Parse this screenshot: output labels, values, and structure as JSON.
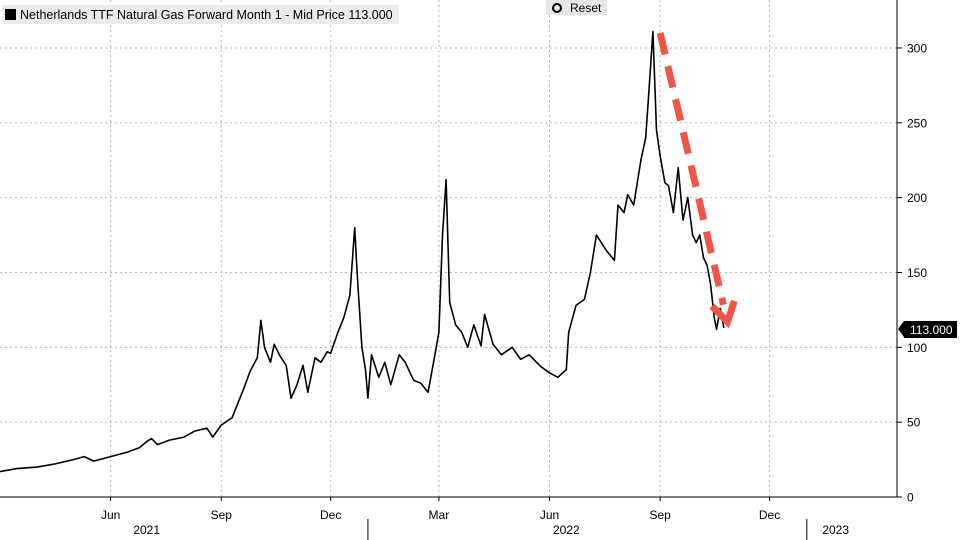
{
  "legend": {
    "text": "Netherlands TTF Natural Gas Forward Month 1 - Mid Price 113.000"
  },
  "toolbar": {
    "reset_label": "Reset",
    "reset_icon": "reset-icon"
  },
  "price_tag": {
    "value": "113.000"
  },
  "colors": {
    "line": "#000000",
    "arrow": "#f05545",
    "grid": "#b5b5b5"
  },
  "chart_data": {
    "type": "line",
    "title": "Netherlands TTF Natural Gas Forward Month 1 - Mid Price 113.000",
    "ylim": [
      0,
      320
    ],
    "yticks": [
      0,
      50,
      100,
      150,
      200,
      250,
      300
    ],
    "month_labels": [
      {
        "label": "Jun",
        "x": "2021-06-01"
      },
      {
        "label": "Sep",
        "x": "2021-09-01"
      },
      {
        "label": "Dec",
        "x": "2021-12-01"
      },
      {
        "label": "Mar",
        "x": "2022-03-01"
      },
      {
        "label": "Jun",
        "x": "2022-06-01"
      },
      {
        "label": "Sep",
        "x": "2022-09-01"
      },
      {
        "label": "Dec",
        "x": "2022-12-01"
      }
    ],
    "year_labels": [
      {
        "label": "2021",
        "x": "2021-07-01"
      },
      {
        "label": "2022",
        "x": "2022-06-15"
      },
      {
        "label": "2023",
        "x": "2023-01-25"
      }
    ],
    "year_dividers": [
      "2022-01-01",
      "2023-01-01"
    ],
    "grid": true,
    "last_value": 113.0,
    "series": [
      {
        "points": [
          [
            "2021-03-01",
            17
          ],
          [
            "2021-03-15",
            19
          ],
          [
            "2021-04-01",
            20
          ],
          [
            "2021-04-15",
            22
          ],
          [
            "2021-05-01",
            25
          ],
          [
            "2021-05-10",
            27
          ],
          [
            "2021-05-18",
            24
          ],
          [
            "2021-06-01",
            27
          ],
          [
            "2021-06-15",
            30
          ],
          [
            "2021-06-25",
            33
          ],
          [
            "2021-07-01",
            37
          ],
          [
            "2021-07-05",
            39
          ],
          [
            "2021-07-10",
            35
          ],
          [
            "2021-07-20",
            38
          ],
          [
            "2021-08-01",
            40
          ],
          [
            "2021-08-10",
            44
          ],
          [
            "2021-08-20",
            46
          ],
          [
            "2021-08-25",
            40
          ],
          [
            "2021-09-01",
            48
          ],
          [
            "2021-09-10",
            53
          ],
          [
            "2021-09-15",
            63
          ],
          [
            "2021-09-20",
            73
          ],
          [
            "2021-09-25",
            84
          ],
          [
            "2021-10-01",
            93
          ],
          [
            "2021-10-04",
            118
          ],
          [
            "2021-10-07",
            100
          ],
          [
            "2021-10-12",
            90
          ],
          [
            "2021-10-15",
            102
          ],
          [
            "2021-10-20",
            94
          ],
          [
            "2021-10-25",
            88
          ],
          [
            "2021-10-29",
            66
          ],
          [
            "2021-11-03",
            75
          ],
          [
            "2021-11-08",
            88
          ],
          [
            "2021-11-12",
            70
          ],
          [
            "2021-11-18",
            93
          ],
          [
            "2021-11-23",
            90
          ],
          [
            "2021-11-28",
            97
          ],
          [
            "2021-12-01",
            96
          ],
          [
            "2021-12-07",
            110
          ],
          [
            "2021-12-12",
            120
          ],
          [
            "2021-12-17",
            135
          ],
          [
            "2021-12-21",
            180
          ],
          [
            "2021-12-23",
            150
          ],
          [
            "2021-12-27",
            100
          ],
          [
            "2021-12-30",
            85
          ],
          [
            "2022-01-01",
            66
          ],
          [
            "2022-01-04",
            95
          ],
          [
            "2022-01-10",
            80
          ],
          [
            "2022-01-15",
            90
          ],
          [
            "2022-01-20",
            75
          ],
          [
            "2022-01-27",
            95
          ],
          [
            "2022-02-01",
            90
          ],
          [
            "2022-02-08",
            78
          ],
          [
            "2022-02-14",
            76
          ],
          [
            "2022-02-20",
            70
          ],
          [
            "2022-02-25",
            92
          ],
          [
            "2022-03-01",
            110
          ],
          [
            "2022-03-04",
            175
          ],
          [
            "2022-03-07",
            212
          ],
          [
            "2022-03-10",
            130
          ],
          [
            "2022-03-15",
            115
          ],
          [
            "2022-03-20",
            110
          ],
          [
            "2022-03-25",
            100
          ],
          [
            "2022-03-30",
            115
          ],
          [
            "2022-04-05",
            101
          ],
          [
            "2022-04-08",
            122
          ],
          [
            "2022-04-15",
            102
          ],
          [
            "2022-04-22",
            95
          ],
          [
            "2022-05-01",
            100
          ],
          [
            "2022-05-08",
            92
          ],
          [
            "2022-05-15",
            95
          ],
          [
            "2022-05-25",
            87
          ],
          [
            "2022-06-01",
            83
          ],
          [
            "2022-06-08",
            80
          ],
          [
            "2022-06-12",
            83
          ],
          [
            "2022-06-15",
            85
          ],
          [
            "2022-06-17",
            110
          ],
          [
            "2022-06-23",
            128
          ],
          [
            "2022-06-30",
            132
          ],
          [
            "2022-07-05",
            150
          ],
          [
            "2022-07-10",
            175
          ],
          [
            "2022-07-18",
            165
          ],
          [
            "2022-07-25",
            158
          ],
          [
            "2022-07-28",
            195
          ],
          [
            "2022-08-02",
            190
          ],
          [
            "2022-08-05",
            202
          ],
          [
            "2022-08-10",
            195
          ],
          [
            "2022-08-16",
            225
          ],
          [
            "2022-08-20",
            240
          ],
          [
            "2022-08-23",
            275
          ],
          [
            "2022-08-26",
            311
          ],
          [
            "2022-08-29",
            245
          ],
          [
            "2022-09-01",
            228
          ],
          [
            "2022-09-05",
            210
          ],
          [
            "2022-09-08",
            208
          ],
          [
            "2022-09-12",
            190
          ],
          [
            "2022-09-16",
            220
          ],
          [
            "2022-09-20",
            185
          ],
          [
            "2022-09-24",
            200
          ],
          [
            "2022-09-28",
            175
          ],
          [
            "2022-10-01",
            170
          ],
          [
            "2022-10-04",
            175
          ],
          [
            "2022-10-07",
            160
          ],
          [
            "2022-10-10",
            155
          ],
          [
            "2022-10-13",
            142
          ],
          [
            "2022-10-16",
            120
          ],
          [
            "2022-10-18",
            112
          ],
          [
            "2022-10-21",
            126
          ],
          [
            "2022-10-24",
            113
          ]
        ]
      }
    ],
    "annotations": [
      {
        "type": "arrow",
        "style": "dashed",
        "color": "#f05545",
        "direction": "down",
        "from": [
          "2022-09-01",
          310
        ],
        "to": [
          "2022-10-27",
          117
        ]
      }
    ]
  }
}
